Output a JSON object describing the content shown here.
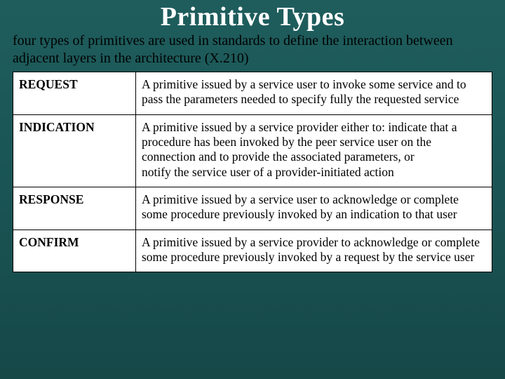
{
  "title": "Primitive Types",
  "subtitle": "four types of primitives are used in standards to define the interaction between adjacent layers in the architecture (X.210)",
  "table": {
    "columns": [
      "name",
      "description"
    ],
    "col_widths": [
      "175px",
      "auto"
    ],
    "rows": [
      {
        "name": "REQUEST",
        "description": "A primitive issued by a service user to invoke some service and to pass the parameters needed to specify fully the requested service"
      },
      {
        "name": "INDICATION",
        "description": "A primitive issued by a service provider either to: indicate that a procedure has been invoked by the peer service user on the connection and to provide the associated parameters, or\nnotify the service user of a provider-initiated action"
      },
      {
        "name": "RESPONSE",
        "description": "A primitive issued by a service user to acknowledge or complete some procedure previously invoked by an indication to that user"
      },
      {
        "name": "CONFIRM",
        "description": "A primitive issued by a service provider to acknowledge or complete some procedure previously invoked by a request by the service user"
      }
    ]
  },
  "styles": {
    "background_gradient": [
      "#1f5d5d",
      "#1a5454",
      "#164848"
    ],
    "title_color": "#ffffff",
    "title_fontsize": 38,
    "subtitle_color": "#000000",
    "subtitle_fontsize": 20,
    "cell_fontsize": 17.5,
    "cell_text_color": "#000000",
    "table_bg": "#ffffff",
    "border_color": "#000000",
    "font_family": "Times New Roman"
  }
}
